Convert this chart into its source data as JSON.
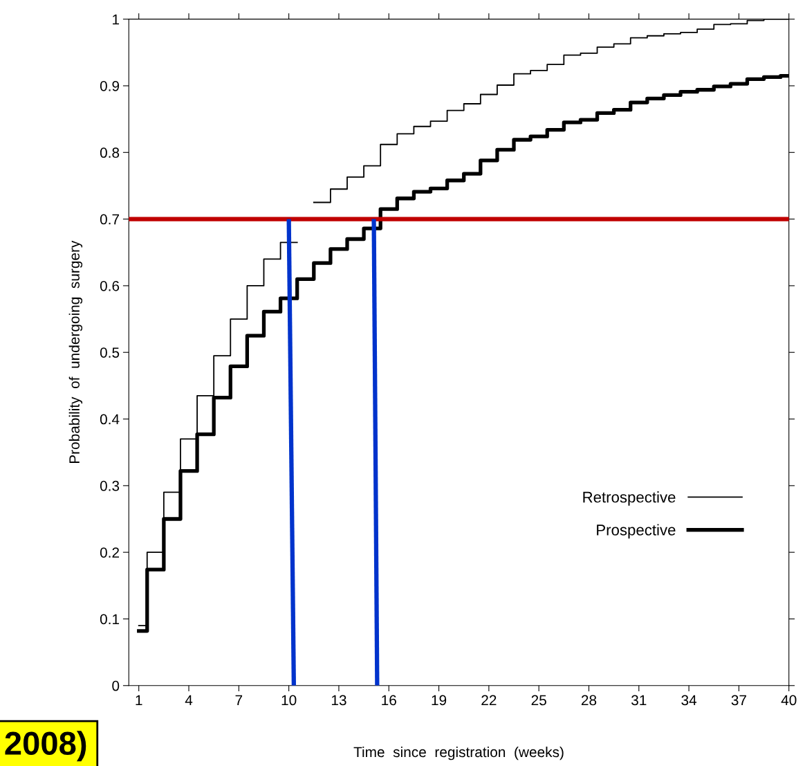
{
  "chart_data": {
    "type": "step",
    "xlabel": "Time  since  registration  (weeks)",
    "ylabel": "Probability  of  undergoing  surgery",
    "x": [
      1,
      2,
      3,
      4,
      5,
      6,
      7,
      8,
      9,
      10,
      11,
      12,
      13,
      14,
      15,
      16,
      17,
      18,
      19,
      20,
      21,
      22,
      23,
      24,
      25,
      26,
      27,
      28,
      29,
      30,
      31,
      32,
      33,
      34,
      35,
      36,
      37,
      38,
      39,
      40
    ],
    "series": [
      {
        "name": "Retrospective",
        "color": "#000000",
        "values": [
          0.09,
          0.2,
          0.29,
          0.37,
          0.435,
          0.495,
          0.55,
          0.6,
          0.64,
          0.665,
          null,
          0.725,
          0.745,
          0.763,
          0.78,
          0.812,
          0.828,
          0.839,
          0.847,
          0.863,
          0.873,
          0.887,
          0.901,
          0.918,
          0.923,
          0.932,
          0.946,
          0.949,
          0.958,
          0.963,
          0.972,
          0.975,
          0.978,
          0.98,
          0.985,
          0.992,
          0.993,
          0.998,
          1.0,
          1.0
        ]
      },
      {
        "name": "Prospective",
        "color": "#000000",
        "values": [
          0.082,
          0.174,
          0.25,
          0.322,
          0.377,
          0.432,
          0.479,
          0.525,
          0.561,
          0.581,
          0.61,
          0.634,
          0.655,
          0.67,
          0.686,
          0.715,
          0.731,
          0.741,
          0.746,
          0.758,
          0.768,
          0.788,
          0.804,
          0.819,
          0.824,
          0.834,
          0.845,
          0.849,
          0.859,
          0.864,
          0.875,
          0.881,
          0.886,
          0.891,
          0.894,
          0.899,
          0.903,
          0.91,
          0.913,
          0.915
        ]
      },
      {
        "type": "line",
        "color": "#0033cc",
        "x": [
          10.3,
          10.0
        ],
        "values": [
          0,
          0.7
        ]
      },
      {
        "type": "line",
        "color": "#0033cc",
        "x": [
          15.3,
          15.1
        ],
        "values": [
          0,
          0.7
        ]
      }
    ],
    "ref_lines": [
      {
        "axis": "y",
        "value": 0.7,
        "color": "#c00000"
      }
    ],
    "xlim": [
      0.4,
      40
    ],
    "xticks": [
      1,
      4,
      7,
      10,
      13,
      16,
      19,
      22,
      25,
      28,
      31,
      34,
      37,
      40
    ],
    "ylim": [
      0,
      1
    ],
    "yticks": [
      0,
      0.1,
      0.2,
      0.3,
      0.4,
      0.5,
      0.6,
      0.7,
      0.8,
      0.9,
      1
    ],
    "grid": false,
    "legend": "bottom right",
    "annotations": [
      "2008)"
    ]
  }
}
